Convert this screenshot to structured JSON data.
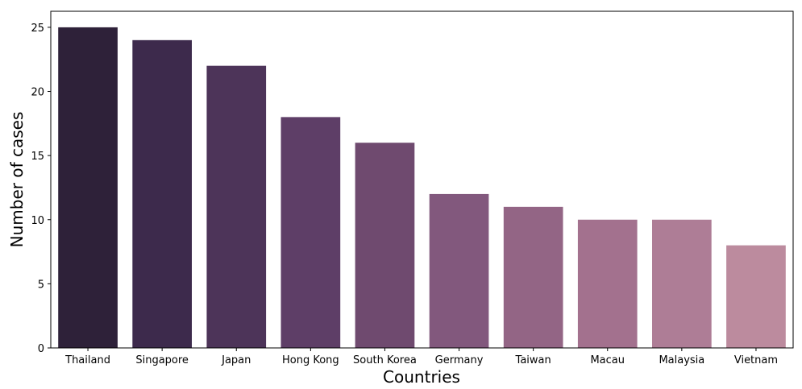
{
  "chart_data": {
    "type": "bar",
    "title": "",
    "xlabel": "Countries",
    "ylabel": "Number of cases",
    "categories": [
      "Thailand",
      "Singapore",
      "Japan",
      "Hong Kong",
      "South Korea",
      "Germany",
      "Taiwan",
      "Macau",
      "Malaysia",
      "Vietnam"
    ],
    "values": [
      25,
      24,
      22,
      18,
      16,
      12,
      11,
      10,
      10,
      8
    ],
    "ylim": [
      0,
      26.25
    ],
    "yticks": [
      0,
      5,
      10,
      15,
      20,
      25
    ],
    "grid": false,
    "legend": "none",
    "colors": [
      "#2e2139",
      "#3d2a4c",
      "#4d3459",
      "#5e3e67",
      "#6f4a6f",
      "#82587d",
      "#936585",
      "#a3718e",
      "#ae7d96",
      "#bc8b9e"
    ]
  }
}
